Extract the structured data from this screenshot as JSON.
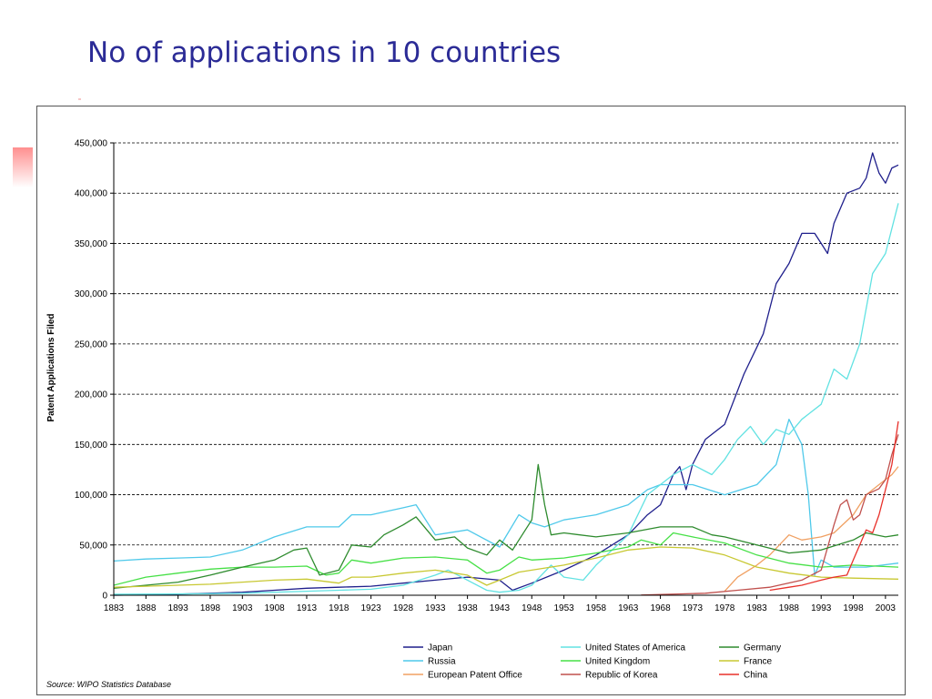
{
  "slide": {
    "title": "No of applications in 10 countries"
  },
  "chart_data": {
    "type": "line",
    "title": "",
    "xlabel": "",
    "ylabel": "Patent Applications Filed",
    "source": "Source: WIPO Statistics Database",
    "xlim": [
      1883,
      2005
    ],
    "ylim": [
      0,
      450000
    ],
    "grid": "horizontal dashed",
    "legend_position": "bottom",
    "x_ticks": [
      1883,
      1888,
      1893,
      1898,
      1903,
      1908,
      1913,
      1918,
      1923,
      1928,
      1933,
      1938,
      1943,
      1948,
      1953,
      1958,
      1963,
      1968,
      1973,
      1978,
      1983,
      1988,
      1993,
      1998,
      2003
    ],
    "x_tick_labels": [
      "1883",
      "1888",
      "1893",
      "1898",
      "1903",
      "1908",
      "1913",
      "1918",
      "1923",
      "1928",
      "1933",
      "1938",
      "1943",
      "1948",
      "1953",
      "1958",
      "1963",
      "1968",
      "1973",
      "1978",
      "1983",
      "1988",
      "1993",
      "1998",
      "2003"
    ],
    "y_ticks": [
      0,
      50000,
      100000,
      150000,
      200000,
      250000,
      300000,
      350000,
      400000,
      450000
    ],
    "y_tick_labels": [
      "0",
      "50,000",
      "100,000",
      "150,000",
      "200,000",
      "250,000",
      "300,000",
      "350,000",
      "400,000",
      "450,000"
    ],
    "series": [
      {
        "name": "Japan",
        "color": "#1f1f8c",
        "points": [
          [
            1883,
            0
          ],
          [
            1890,
            500
          ],
          [
            1898,
            2000
          ],
          [
            1903,
            3000
          ],
          [
            1908,
            5000
          ],
          [
            1913,
            7000
          ],
          [
            1918,
            8000
          ],
          [
            1923,
            9000
          ],
          [
            1928,
            12000
          ],
          [
            1933,
            15000
          ],
          [
            1938,
            18000
          ],
          [
            1943,
            15000
          ],
          [
            1945,
            5000
          ],
          [
            1948,
            12000
          ],
          [
            1953,
            25000
          ],
          [
            1958,
            40000
          ],
          [
            1963,
            60000
          ],
          [
            1966,
            80000
          ],
          [
            1968,
            90000
          ],
          [
            1970,
            120000
          ],
          [
            1971,
            128000
          ],
          [
            1972,
            105000
          ],
          [
            1973,
            130000
          ],
          [
            1975,
            155000
          ],
          [
            1978,
            170000
          ],
          [
            1981,
            220000
          ],
          [
            1984,
            260000
          ],
          [
            1986,
            310000
          ],
          [
            1988,
            330000
          ],
          [
            1990,
            360000
          ],
          [
            1992,
            360000
          ],
          [
            1993,
            350000
          ],
          [
            1994,
            340000
          ],
          [
            1995,
            370000
          ],
          [
            1997,
            400000
          ],
          [
            1999,
            405000
          ],
          [
            2000,
            415000
          ],
          [
            2001,
            440000
          ],
          [
            2002,
            420000
          ],
          [
            2003,
            410000
          ],
          [
            2004,
            425000
          ],
          [
            2005,
            428000
          ]
        ]
      },
      {
        "name": "Russia",
        "color": "#4fc9ea",
        "points": [
          [
            1883,
            34000
          ],
          [
            1888,
            36000
          ],
          [
            1893,
            37000
          ],
          [
            1898,
            38000
          ],
          [
            1903,
            45000
          ],
          [
            1908,
            58000
          ],
          [
            1913,
            68000
          ],
          [
            1918,
            68000
          ],
          [
            1920,
            80000
          ],
          [
            1923,
            80000
          ],
          [
            1928,
            87000
          ],
          [
            1930,
            90000
          ],
          [
            1933,
            60000
          ],
          [
            1938,
            65000
          ],
          [
            1943,
            48000
          ],
          [
            1946,
            80000
          ],
          [
            1948,
            72000
          ],
          [
            1950,
            68000
          ],
          [
            1953,
            75000
          ],
          [
            1958,
            80000
          ],
          [
            1963,
            90000
          ],
          [
            1966,
            105000
          ],
          [
            1968,
            110000
          ],
          [
            1973,
            110000
          ],
          [
            1978,
            100000
          ],
          [
            1983,
            110000
          ],
          [
            1986,
            130000
          ],
          [
            1988,
            175000
          ],
          [
            1990,
            150000
          ],
          [
            1991,
            100000
          ],
          [
            1992,
            20000
          ],
          [
            1993,
            35000
          ],
          [
            1995,
            28000
          ],
          [
            2000,
            28000
          ],
          [
            2005,
            32000
          ]
        ]
      },
      {
        "name": "European Patent Office",
        "color": "#f0a062",
        "points": [
          [
            1978,
            4000
          ],
          [
            1980,
            18000
          ],
          [
            1983,
            30000
          ],
          [
            1985,
            40000
          ],
          [
            1988,
            60000
          ],
          [
            1990,
            55000
          ],
          [
            1993,
            58000
          ],
          [
            1995,
            62000
          ],
          [
            1998,
            80000
          ],
          [
            2000,
            100000
          ],
          [
            2002,
            110000
          ],
          [
            2004,
            120000
          ],
          [
            2005,
            128000
          ]
        ]
      },
      {
        "name": "United States of America",
        "color": "#62e2e2",
        "points": [
          [
            1883,
            1000
          ],
          [
            1890,
            1200
          ],
          [
            1898,
            1500
          ],
          [
            1903,
            2000
          ],
          [
            1908,
            3000
          ],
          [
            1913,
            4000
          ],
          [
            1918,
            5000
          ],
          [
            1923,
            6000
          ],
          [
            1928,
            10000
          ],
          [
            1933,
            20000
          ],
          [
            1935,
            25000
          ],
          [
            1938,
            15000
          ],
          [
            1941,
            5000
          ],
          [
            1943,
            3000
          ],
          [
            1946,
            5000
          ],
          [
            1948,
            10000
          ],
          [
            1951,
            30000
          ],
          [
            1953,
            18000
          ],
          [
            1956,
            15000
          ],
          [
            1958,
            30000
          ],
          [
            1963,
            60000
          ],
          [
            1966,
            100000
          ],
          [
            1968,
            110000
          ],
          [
            1970,
            120000
          ],
          [
            1973,
            130000
          ],
          [
            1976,
            120000
          ],
          [
            1978,
            135000
          ],
          [
            1980,
            155000
          ],
          [
            1982,
            168000
          ],
          [
            1984,
            150000
          ],
          [
            1986,
            165000
          ],
          [
            1988,
            160000
          ],
          [
            1990,
            175000
          ],
          [
            1993,
            190000
          ],
          [
            1995,
            225000
          ],
          [
            1997,
            215000
          ],
          [
            1999,
            250000
          ],
          [
            2001,
            320000
          ],
          [
            2003,
            340000
          ],
          [
            2005,
            390000
          ]
        ]
      },
      {
        "name": "United Kingdom",
        "color": "#46e046",
        "points": [
          [
            1883,
            10000
          ],
          [
            1888,
            18000
          ],
          [
            1893,
            22000
          ],
          [
            1898,
            26000
          ],
          [
            1903,
            28000
          ],
          [
            1908,
            28000
          ],
          [
            1913,
            29000
          ],
          [
            1916,
            20000
          ],
          [
            1918,
            22000
          ],
          [
            1920,
            35000
          ],
          [
            1923,
            32000
          ],
          [
            1928,
            37000
          ],
          [
            1933,
            38000
          ],
          [
            1938,
            35000
          ],
          [
            1941,
            22000
          ],
          [
            1943,
            25000
          ],
          [
            1946,
            38000
          ],
          [
            1948,
            35000
          ],
          [
            1953,
            37000
          ],
          [
            1958,
            42000
          ],
          [
            1963,
            48000
          ],
          [
            1965,
            55000
          ],
          [
            1968,
            50000
          ],
          [
            1970,
            62000
          ],
          [
            1973,
            58000
          ],
          [
            1978,
            52000
          ],
          [
            1983,
            40000
          ],
          [
            1988,
            32000
          ],
          [
            1993,
            28000
          ],
          [
            1998,
            30000
          ],
          [
            2005,
            28000
          ]
        ]
      },
      {
        "name": "Republic of Korea",
        "color": "#c0504d",
        "points": [
          [
            1965,
            200
          ],
          [
            1975,
            2000
          ],
          [
            1980,
            5000
          ],
          [
            1985,
            8000
          ],
          [
            1990,
            15000
          ],
          [
            1993,
            25000
          ],
          [
            1995,
            70000
          ],
          [
            1996,
            90000
          ],
          [
            1997,
            95000
          ],
          [
            1998,
            75000
          ],
          [
            1999,
            80000
          ],
          [
            2000,
            100000
          ],
          [
            2002,
            106000
          ],
          [
            2003,
            115000
          ],
          [
            2004,
            140000
          ],
          [
            2005,
            160000
          ]
        ]
      },
      {
        "name": "Germany",
        "color": "#2e8b2e",
        "points": [
          [
            1883,
            7000
          ],
          [
            1888,
            10000
          ],
          [
            1893,
            13000
          ],
          [
            1898,
            20000
          ],
          [
            1903,
            28000
          ],
          [
            1908,
            35000
          ],
          [
            1911,
            45000
          ],
          [
            1913,
            47000
          ],
          [
            1915,
            20000
          ],
          [
            1918,
            25000
          ],
          [
            1920,
            50000
          ],
          [
            1923,
            48000
          ],
          [
            1925,
            60000
          ],
          [
            1928,
            70000
          ],
          [
            1930,
            78000
          ],
          [
            1933,
            55000
          ],
          [
            1936,
            58000
          ],
          [
            1938,
            47000
          ],
          [
            1941,
            40000
          ],
          [
            1943,
            55000
          ],
          [
            1945,
            45000
          ],
          [
            1948,
            75000
          ],
          [
            1949,
            130000
          ],
          [
            1950,
            90000
          ],
          [
            1951,
            60000
          ],
          [
            1953,
            62000
          ],
          [
            1958,
            58000
          ],
          [
            1963,
            62000
          ],
          [
            1968,
            68000
          ],
          [
            1973,
            68000
          ],
          [
            1976,
            60000
          ],
          [
            1978,
            58000
          ],
          [
            1983,
            50000
          ],
          [
            1988,
            42000
          ],
          [
            1993,
            45000
          ],
          [
            1998,
            55000
          ],
          [
            2000,
            62000
          ],
          [
            2003,
            58000
          ],
          [
            2005,
            60000
          ]
        ]
      },
      {
        "name": "France",
        "color": "#c8c832",
        "points": [
          [
            1883,
            8000
          ],
          [
            1888,
            9000
          ],
          [
            1893,
            10000
          ],
          [
            1898,
            11000
          ],
          [
            1903,
            13000
          ],
          [
            1908,
            15000
          ],
          [
            1913,
            16000
          ],
          [
            1918,
            12000
          ],
          [
            1920,
            18000
          ],
          [
            1923,
            18000
          ],
          [
            1928,
            22000
          ],
          [
            1933,
            25000
          ],
          [
            1938,
            20000
          ],
          [
            1941,
            10000
          ],
          [
            1943,
            15000
          ],
          [
            1946,
            23000
          ],
          [
            1948,
            25000
          ],
          [
            1953,
            30000
          ],
          [
            1958,
            37000
          ],
          [
            1963,
            45000
          ],
          [
            1968,
            48000
          ],
          [
            1973,
            47000
          ],
          [
            1978,
            40000
          ],
          [
            1983,
            28000
          ],
          [
            1988,
            22000
          ],
          [
            1993,
            18000
          ],
          [
            1998,
            17000
          ],
          [
            2005,
            16000
          ]
        ]
      },
      {
        "name": "China",
        "color": "#e8302a",
        "points": [
          [
            1985,
            5000
          ],
          [
            1988,
            8000
          ],
          [
            1990,
            10000
          ],
          [
            1993,
            15000
          ],
          [
            1995,
            18000
          ],
          [
            1997,
            20000
          ],
          [
            1998,
            35000
          ],
          [
            1999,
            50000
          ],
          [
            2000,
            65000
          ],
          [
            2001,
            62000
          ],
          [
            2002,
            80000
          ],
          [
            2003,
            105000
          ],
          [
            2004,
            130000
          ],
          [
            2005,
            173000
          ]
        ]
      }
    ]
  }
}
